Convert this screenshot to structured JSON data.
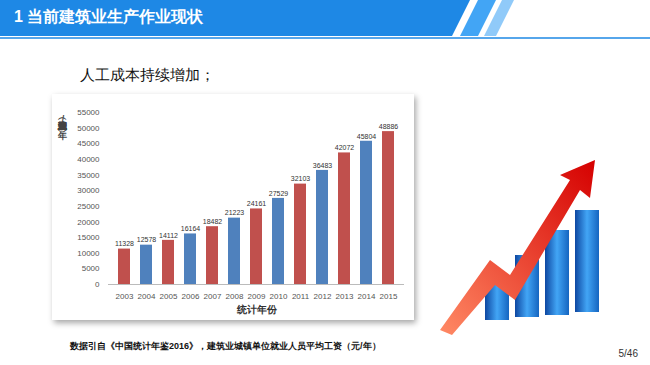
{
  "slide": {
    "header": "1 当前建筑业生产作业现状",
    "text": "人工成本持续增加；",
    "caption": "数据引自《中国统计年鉴2016》，建筑业城镇单位就业人员平均工资（元/年）",
    "page": "5/46"
  },
  "chart_data": {
    "type": "bar",
    "x_label": "统计年份",
    "y_label": "建筑业工人平均工资（元/年）",
    "categories": [
      "2003",
      "2004",
      "2005",
      "2006",
      "2007",
      "2008",
      "2009",
      "2010",
      "2011",
      "2012",
      "2013",
      "2014",
      "2015"
    ],
    "values": [
      11328,
      12578,
      14112,
      16164,
      18482,
      21223,
      24161,
      27529,
      32103,
      36483,
      42072,
      45804,
      48886
    ],
    "colors": [
      "#c0504d",
      "#4f81bd",
      "#c0504d",
      "#4f81bd",
      "#c0504d",
      "#4f81bd",
      "#c0504d",
      "#4f81bd",
      "#c0504d",
      "#4f81bd",
      "#c0504d",
      "#4f81bd",
      "#c0504d"
    ],
    "ylim": [
      0,
      55000
    ],
    "yticks": [
      0,
      5000,
      10000,
      15000,
      20000,
      25000,
      30000,
      35000,
      40000,
      45000,
      50000,
      55000
    ],
    "grid": false,
    "data_labels": true
  }
}
